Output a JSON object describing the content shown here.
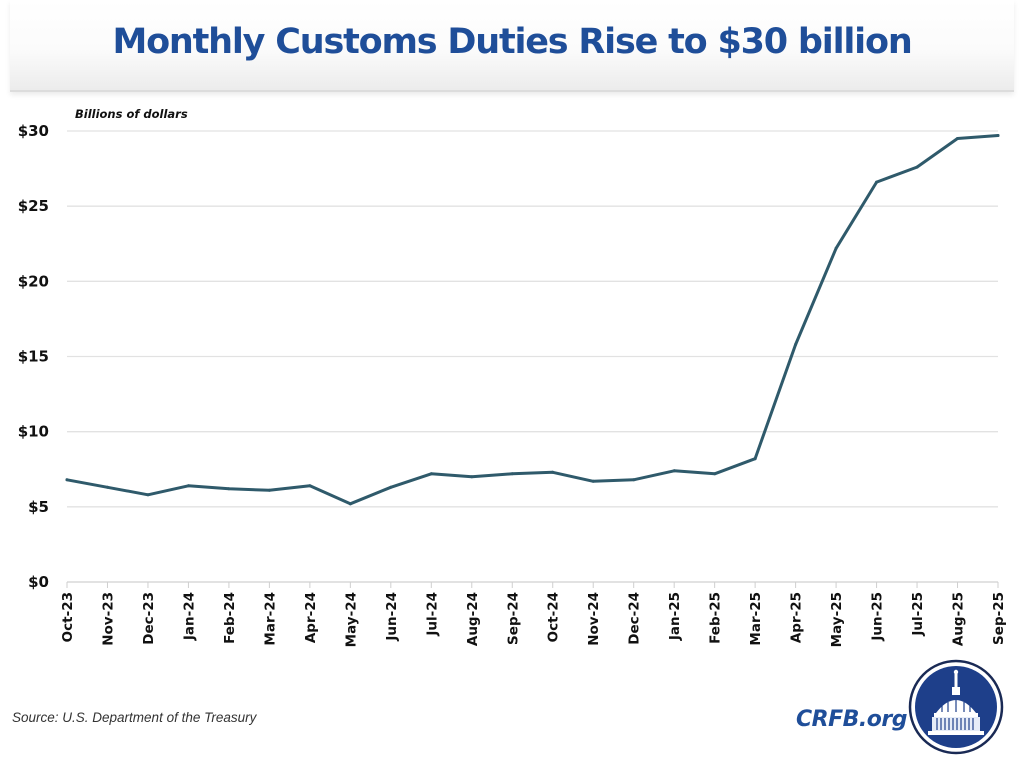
{
  "header": {
    "title": "Monthly Customs Duties Rise to $30 billion"
  },
  "footer": {
    "source": "Source: U.S. Department of the Treasury",
    "brand": "CRFB.org",
    "logo_icon": "capitol-dome-seal-icon"
  },
  "colors": {
    "title": "#1f4e99",
    "line": "#2f5a6b",
    "grid": "#e2e2e2",
    "logo": "#1e3f8a"
  },
  "chart_data": {
    "type": "line",
    "title": "Monthly Customs Duties Rise to $30 billion",
    "unit_label": "Billions of dollars",
    "xlabel": "",
    "ylabel": "Billions of dollars",
    "ylim": [
      0,
      30
    ],
    "yticks": [
      0,
      5,
      10,
      15,
      20,
      25,
      30
    ],
    "ytick_labels": [
      "$0",
      "$5",
      "$10",
      "$15",
      "$20",
      "$25",
      "$30"
    ],
    "grid": true,
    "legend": "none",
    "categories": [
      "Oct-23",
      "Nov-23",
      "Dec-23",
      "Jan-24",
      "Feb-24",
      "Mar-24",
      "Apr-24",
      "May-24",
      "Jun-24",
      "Jul-24",
      "Aug-24",
      "Sep-24",
      "Oct-24",
      "Nov-24",
      "Dec-24",
      "Jan-25",
      "Feb-25",
      "Mar-25",
      "Apr-25",
      "May-25",
      "Jun-25",
      "Jul-25",
      "Aug-25",
      "Sep-25"
    ],
    "series": [
      {
        "name": "Monthly customs duties",
        "values": [
          6.8,
          6.3,
          5.8,
          6.4,
          6.2,
          6.1,
          6.4,
          5.2,
          6.3,
          7.2,
          7.0,
          7.2,
          7.3,
          6.7,
          6.8,
          7.4,
          7.2,
          8.2,
          15.8,
          22.2,
          26.6,
          27.6,
          29.5,
          29.7
        ]
      }
    ]
  }
}
